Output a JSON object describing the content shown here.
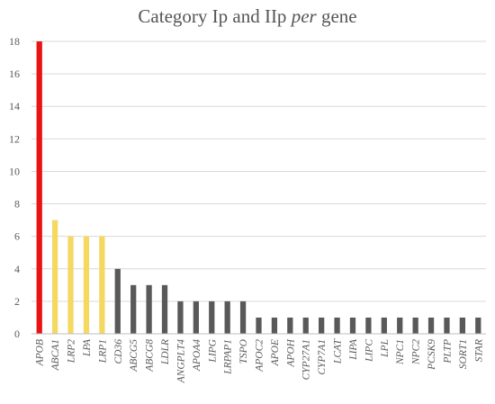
{
  "chart_data": {
    "type": "bar",
    "title_parts": [
      "Category Ip and IIp ",
      "per",
      " gene"
    ],
    "xlabel": "",
    "ylabel": "",
    "ylim": [
      0,
      18
    ],
    "yticks": [
      0,
      2,
      4,
      6,
      8,
      10,
      12,
      14,
      16,
      18
    ],
    "grid": true,
    "categories": [
      "APOB",
      "ABCA1",
      "LRP2",
      "LPA",
      "LRP1",
      "CD36",
      "ABCG5",
      "ABCG8",
      "LDLR",
      "ANGPLT4",
      "APOA4",
      "LIPG",
      "LRPAP1",
      "TSPO",
      "APOC2",
      "APOE",
      "APOH",
      "CYP27A1",
      "CYP7A1",
      "LCAT",
      "LIPA",
      "LIPC",
      "LPL",
      "NPC1",
      "NPC2",
      "PCSK9",
      "PLTP",
      "SORT1",
      "STAR"
    ],
    "values": [
      18,
      7,
      6,
      6,
      6,
      4,
      3,
      3,
      3,
      2,
      2,
      2,
      2,
      2,
      1,
      1,
      1,
      1,
      1,
      1,
      1,
      1,
      1,
      1,
      1,
      1,
      1,
      1,
      1
    ],
    "colors": [
      "#e81414",
      "#f5d862",
      "#f5d862",
      "#f5d862",
      "#f5d862",
      "#595959",
      "#595959",
      "#595959",
      "#595959",
      "#595959",
      "#595959",
      "#595959",
      "#595959",
      "#595959",
      "#595959",
      "#595959",
      "#595959",
      "#595959",
      "#595959",
      "#595959",
      "#595959",
      "#595959",
      "#595959",
      "#595959",
      "#595959",
      "#595959",
      "#595959",
      "#595959",
      "#595959"
    ]
  }
}
